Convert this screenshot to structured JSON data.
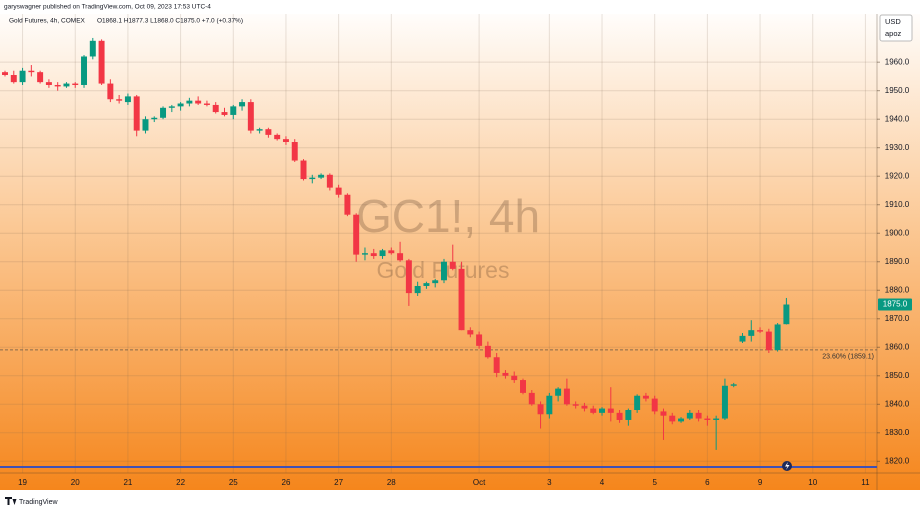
{
  "header": {
    "publisher": "garyswagner published on TradingView.com, Oct 09, 2023 17:53 UTC-4"
  },
  "footer": {
    "brand": "TradingView"
  },
  "chart_data": {
    "type": "candlestick",
    "status_line": {
      "symbol": "Gold Futures, 4h, COMEX",
      "ohlc": "O1868.1 H1877.3 L1868.0 C1875.0 +7.0 (+0.37%)"
    },
    "watermark": {
      "ticker": "GC1!, 4h",
      "name": "Gold Futures"
    },
    "currency": {
      "code": "USD",
      "unit": "apoz"
    },
    "up_color": "#089981",
    "down_color": "#f23645",
    "open": [
      1956.5,
      1955.5,
      1953,
      1957,
      1956.5,
      1953,
      1952,
      1951.5,
      1952.5,
      1952,
      1962,
      1967.5,
      1952.5,
      1947,
      1946,
      1948,
      1936,
      1940,
      1940.5,
      1944,
      1944.5,
      1945.5,
      1946.5,
      1945.5,
      1945,
      1942.5,
      1941.5,
      1944.5,
      1946,
      1936,
      1936.5,
      1934.5,
      1933,
      1932,
      1925.5,
      1919,
      1919.5,
      1920.5,
      1916,
      1913.5,
      1906.5,
      1892.5,
      1893,
      1892,
      1894,
      1893,
      1890.5,
      1879,
      1881.5,
      1882.5,
      1883.5,
      1890,
      1887.5,
      1866,
      1864.5,
      1860.5,
      1856.5,
      1851,
      1850,
      1848.5,
      1844,
      1840,
      1836.5,
      1843,
      1845.5,
      1840,
      1839.5,
      1838.5,
      1837,
      1838.5,
      1837,
      1834.5,
      1838,
      1843,
      1842,
      1837.5,
      1836,
      1834,
      1835,
      1837,
      1835,
      1834.5,
      1835,
      1846.5,
      1862,
      1864,
      1866,
      1865.5,
      1859,
      1868.1
    ],
    "high": [
      1957,
      1957,
      1958,
      1959,
      1957,
      1954,
      1953,
      1953,
      1953,
      1962.5,
      1968.5,
      1968,
      1954,
      1948.5,
      1949,
      1948.5,
      1941,
      1941,
      1944.5,
      1945,
      1946,
      1947.5,
      1948,
      1946.5,
      1946,
      1944,
      1945,
      1947,
      1947,
      1937,
      1937,
      1935,
      1934,
      1933,
      1926,
      1920.5,
      1921,
      1921,
      1917,
      1914,
      1907,
      1895,
      1894.5,
      1894.5,
      1895,
      1897,
      1891,
      1883,
      1883,
      1884,
      1891,
      1896,
      1890,
      1867,
      1865.5,
      1862,
      1858,
      1852,
      1851.5,
      1849,
      1845,
      1841,
      1844,
      1846,
      1849,
      1841,
      1840.5,
      1839.5,
      1839,
      1846,
      1838,
      1838.5,
      1843.5,
      1844,
      1843,
      1838.5,
      1837,
      1835.5,
      1838,
      1838,
      1836,
      1836,
      1849,
      1847.5,
      1865,
      1869.5,
      1867,
      1866.5,
      1868.5,
      1877.3
    ],
    "low": [
      1955,
      1952.5,
      1952,
      1955,
      1952.5,
      1951,
      1950,
      1951,
      1951,
      1951,
      1961,
      1952,
      1946,
      1945.5,
      1945,
      1934,
      1935,
      1939,
      1940,
      1942.5,
      1943,
      1944.5,
      1945,
      1944.5,
      1942,
      1941,
      1940,
      1943,
      1935,
      1935,
      1933.5,
      1932.5,
      1931,
      1925,
      1918.5,
      1917.5,
      1919,
      1915,
      1912.5,
      1906,
      1890,
      1890.5,
      1891,
      1891,
      1892.5,
      1890,
      1874.5,
      1878,
      1880.5,
      1881,
      1882.5,
      1887,
      1866,
      1863.5,
      1859.5,
      1856,
      1849.5,
      1849,
      1847.5,
      1843.5,
      1839.5,
      1831.5,
      1835,
      1841,
      1839.5,
      1838.5,
      1837.5,
      1836.5,
      1836,
      1834,
      1833.5,
      1832.5,
      1837,
      1841,
      1836.5,
      1827.5,
      1833,
      1833.5,
      1834.5,
      1834,
      1832.5,
      1824,
      1834.5,
      1846,
      1861.5,
      1862,
      1865,
      1858,
      1858.5,
      1868.0
    ],
    "close": [
      1955.5,
      1953,
      1957,
      1956.5,
      1953,
      1952,
      1951.5,
      1952.5,
      1952,
      1962,
      1967.5,
      1952.5,
      1947,
      1946.5,
      1948,
      1936,
      1940,
      1940.5,
      1944,
      1944.5,
      1945.5,
      1946.5,
      1945.5,
      1945,
      1942.5,
      1941.5,
      1944.5,
      1946,
      1936,
      1936.5,
      1934.5,
      1933,
      1932,
      1925.5,
      1919,
      1919.5,
      1920.5,
      1916,
      1913.5,
      1906.5,
      1892.5,
      1893,
      1892,
      1894,
      1893,
      1890.5,
      1879,
      1881.5,
      1882.5,
      1883.5,
      1890,
      1887.5,
      1866,
      1864.5,
      1860.5,
      1856.5,
      1851,
      1850,
      1848.5,
      1844,
      1840,
      1836.5,
      1843,
      1845.5,
      1840,
      1839.5,
      1838.5,
      1837,
      1838.5,
      1837,
      1834.5,
      1838,
      1843,
      1842,
      1837.5,
      1836,
      1834,
      1835,
      1837,
      1835,
      1834.5,
      1835,
      1846.5,
      1847,
      1864,
      1866,
      1865.5,
      1859,
      1868,
      1875
    ],
    "xlim": [
      -0.57,
      99.32
    ],
    "xticks": [
      {
        "value": 2,
        "label": "19"
      },
      {
        "value": 8,
        "label": "20"
      },
      {
        "value": 14,
        "label": "21"
      },
      {
        "value": 20,
        "label": "22"
      },
      {
        "value": 26,
        "label": "25"
      },
      {
        "value": 32,
        "label": "26"
      },
      {
        "value": 38,
        "label": "27"
      },
      {
        "value": 44,
        "label": "28"
      },
      {
        "value": 54,
        "label": "Oct"
      },
      {
        "value": 62,
        "label": "3"
      },
      {
        "value": 68,
        "label": "4"
      },
      {
        "value": 74,
        "label": "5"
      },
      {
        "value": 80,
        "label": "6"
      },
      {
        "value": 86,
        "label": "9"
      },
      {
        "value": 92,
        "label": "10"
      },
      {
        "value": 98,
        "label": "11"
      }
    ],
    "ylim": [
      1815.9,
      1976.9
    ],
    "yticks": [
      {
        "value": 1820,
        "label": "1820.0"
      },
      {
        "value": 1830,
        "label": "1830.0"
      },
      {
        "value": 1840,
        "label": "1840.0"
      },
      {
        "value": 1850,
        "label": "1850.0"
      },
      {
        "value": 1860,
        "label": "1860.0"
      },
      {
        "value": 1870,
        "label": "1870.0"
      },
      {
        "value": 1880,
        "label": "1880.0"
      },
      {
        "value": 1890,
        "label": "1890.0"
      },
      {
        "value": 1900,
        "label": "1900.0"
      },
      {
        "value": 1910,
        "label": "1910.0"
      },
      {
        "value": 1920,
        "label": "1920.0"
      },
      {
        "value": 1930,
        "label": "1930.0"
      },
      {
        "value": 1940,
        "label": "1940.0"
      },
      {
        "value": 1950,
        "label": "1950.0"
      },
      {
        "value": 1960,
        "label": "1960.0"
      }
    ],
    "grid": true,
    "last_price": {
      "value": 1875.0,
      "label": "1875.0"
    },
    "fib_level": {
      "value": 1859.1,
      "label": "23.60% (1859.1)"
    },
    "hline": {
      "value": 1818,
      "color": "#3f51b5"
    }
  }
}
